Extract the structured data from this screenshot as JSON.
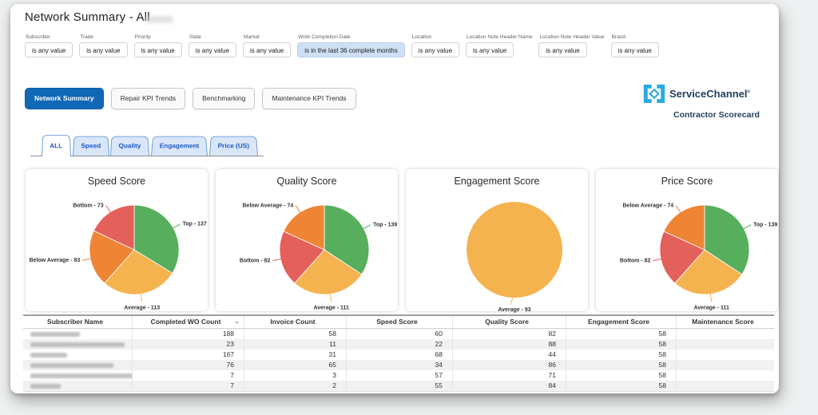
{
  "window": {
    "title": "Network Summary - All"
  },
  "filters": [
    {
      "label": "Subscriber",
      "value": "is any value",
      "highlighted": false
    },
    {
      "label": "Trade",
      "value": "is any value",
      "highlighted": false
    },
    {
      "label": "Priority",
      "value": "is any value",
      "highlighted": false
    },
    {
      "label": "State",
      "value": "is any value",
      "highlighted": false
    },
    {
      "label": "Market",
      "value": "is any value",
      "highlighted": false
    },
    {
      "label": "Work Completion Date",
      "value": "is in the last 36 complete months",
      "highlighted": true
    },
    {
      "label": "Location",
      "value": "is any value",
      "highlighted": false
    },
    {
      "label": "Location Note Header Name",
      "value": "is any value",
      "highlighted": false
    },
    {
      "label": "Location Note Header Value",
      "value": "is any value",
      "highlighted": false
    },
    {
      "label": "Brand",
      "value": "is any value",
      "highlighted": false
    }
  ],
  "nav_buttons": [
    {
      "label": "Network Summary",
      "active": true
    },
    {
      "label": "Repair KPI Trends",
      "active": false
    },
    {
      "label": "Benchmarking",
      "active": false
    },
    {
      "label": "Maintenance KPI Trends",
      "active": false
    }
  ],
  "brand": {
    "name": "ServiceChannel",
    "registered": "®",
    "subtitle": "Contractor Scorecard",
    "icon_color": "#29ABE2",
    "text_color": "#24405C"
  },
  "tabs": [
    {
      "label": "ALL",
      "active": true
    },
    {
      "label": "Speed",
      "active": false
    },
    {
      "label": "Quality",
      "active": false
    },
    {
      "label": "Engagement",
      "active": false
    },
    {
      "label": "Price (US)",
      "active": false
    }
  ],
  "colors": {
    "top_green": "#57AE5C",
    "average_yellow": "#F5B350",
    "below_average_orange": "#EF8435",
    "bottom_red": "#E4605A",
    "accent_blue": "#1068B6",
    "highlight_filter_blue": "#CFE0F5"
  },
  "chart_data": [
    {
      "type": "pie",
      "title": "Speed Score",
      "slices": [
        {
          "label": "Top",
          "value": 137,
          "color": "#57AE5C"
        },
        {
          "label": "Average",
          "value": 113,
          "color": "#F5B350"
        },
        {
          "label": "Below Average",
          "value": 83,
          "color": "#EF8435"
        },
        {
          "label": "Bottom",
          "value": 73,
          "color": "#E4605A"
        }
      ]
    },
    {
      "type": "pie",
      "title": "Quality Score",
      "slices": [
        {
          "label": "Top",
          "value": 139,
          "color": "#57AE5C"
        },
        {
          "label": "Average",
          "value": 111,
          "color": "#F5B350"
        },
        {
          "label": "Bottom",
          "value": 82,
          "color": "#E4605A"
        },
        {
          "label": "Below Average",
          "value": 74,
          "color": "#EF8435"
        }
      ]
    },
    {
      "type": "pie",
      "title": "Engagement Score",
      "slices": [
        {
          "label": "Average",
          "value": 93,
          "color": "#F5B350"
        }
      ]
    },
    {
      "type": "pie",
      "title": "Price Score",
      "slices": [
        {
          "label": "Top",
          "value": 139,
          "color": "#57AE5C"
        },
        {
          "label": "Average",
          "value": 111,
          "color": "#F5B350"
        },
        {
          "label": "Bottom",
          "value": 82,
          "color": "#E4605A"
        },
        {
          "label": "Below Average",
          "value": 74,
          "color": "#EF8435"
        }
      ]
    }
  ],
  "table": {
    "columns": [
      "Subscriber Name",
      "Completed WO Count",
      "Invoice Count",
      "Speed Score",
      "Quality Score",
      "Engagement Score",
      "Maintenance Score"
    ],
    "sort_column": "Completed WO Count",
    "rows": [
      [
        "",
        "188",
        "58",
        "60",
        "82",
        "58",
        ""
      ],
      [
        "",
        "23",
        "11",
        "22",
        "88",
        "58",
        ""
      ],
      [
        "",
        "167",
        "31",
        "68",
        "44",
        "58",
        ""
      ],
      [
        "",
        "76",
        "65",
        "34",
        "86",
        "58",
        ""
      ],
      [
        "",
        "7",
        "3",
        "57",
        "71",
        "58",
        ""
      ],
      [
        "",
        "7",
        "2",
        "55",
        "84",
        "58",
        ""
      ]
    ]
  }
}
